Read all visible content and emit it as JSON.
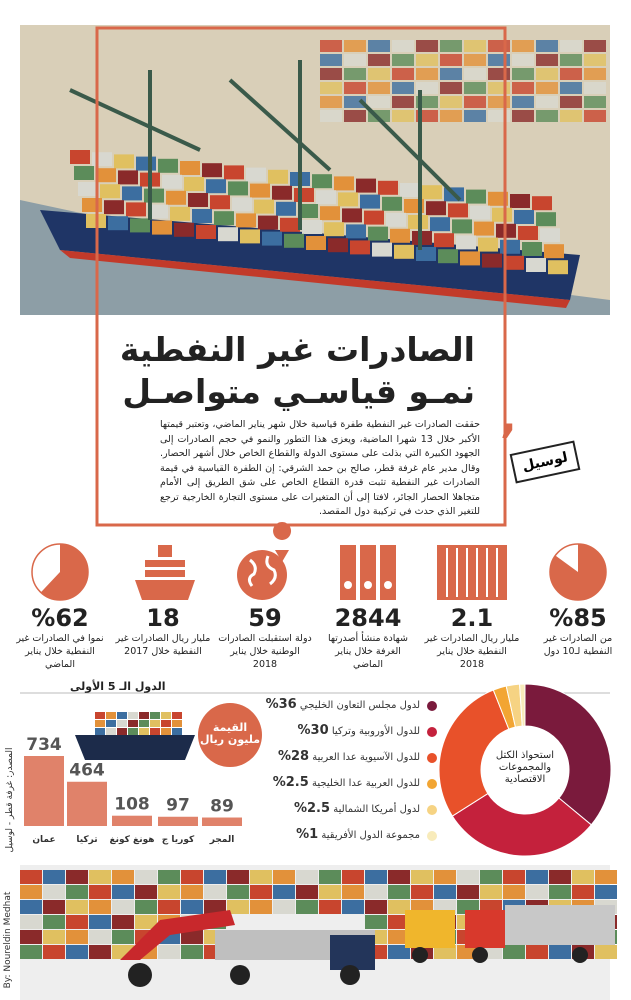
{
  "header": {
    "title_line1": "الصادرات غير النفطية",
    "title_line2": "نمـو قياسـي متواصـل"
  },
  "logo": "لوسيل",
  "intro": "حققت الصادرات غير النفطية طفرة قياسية خلال شهر يناير الماضي، وتعتبر قيمتها الأكبر خلال 13 شهرا الماضية، ويعزى هذا التطور والنمو في حجم الصادرات إلى الجهود الكبيرة التي بذلت على مستوى الدولة والقطاع الخاص خلال أشهر الحصار. وقال مدير عام غرفة قطر، صالح بن حمد الشرقي: إن الطفرة القياسية في قيمة الصادرات غير النفطية تثبت قدرة القطاع الخاص على شق الطريق إلى الأمام متجاهلا الحصار الجائر، لافتا إلى أن المتغيرات على مستوى التجارة الخارجية ترجع للتغير الذي حدث في تركيبة دول المقصد.",
  "stats": [
    {
      "value": 85,
      "value_label": "%85",
      "text": "من الصادرات غير النفطية لـ10 دول"
    },
    {
      "value": 2.1,
      "text": "مليار ريال الصادرات غير النفطية خلال يناير 2018"
    },
    {
      "value": 2844,
      "text": "شهادة منشأ أصدرتها الغرفة خلال يناير الماضي"
    },
    {
      "value": 59,
      "text": "دولة استقبلت الصادرات الوطنية خلال يناير 2018"
    },
    {
      "value": 18,
      "text": "مليار ريال الصادرات غير النفطية خلال 2017"
    },
    {
      "value": 62,
      "value_label": "%62",
      "text": "نموا في الصادرات غير النفطية خلال يناير الماضي"
    }
  ],
  "chart_data": [
    {
      "type": "donut",
      "title": "استحواذ الكتل والمجموعات الاقتصادية",
      "categories": [
        "لدول مجلس التعاون الخليجي",
        "للدول الأوروبية وتركيا",
        "للدول الآسيوية عدا العربية",
        "للدول العربية عدا الخليجية",
        "لدول أمريكا الشمالية",
        "مجموعة الدول الأفريقية"
      ],
      "values": [
        36,
        30,
        28,
        2.5,
        2.5,
        1
      ],
      "value_labels": [
        "%36",
        "%30",
        "%28",
        "%2.5",
        "%2.5",
        "%1"
      ],
      "colors": [
        "#7a1a3c",
        "#c4213c",
        "#e8512a",
        "#f2a533",
        "#f6d383",
        "#f8ebba"
      ]
    },
    {
      "type": "bar",
      "title": "الدول الـ 5 الأولى",
      "subtitle": "القيمة مليون ريال",
      "categories": [
        "عمان",
        "تركيا",
        "هونغ كونغ",
        "كوريا ج",
        "المجر"
      ],
      "values": [
        734,
        464,
        108,
        97,
        89
      ],
      "color": "#e0826a"
    }
  ],
  "source": "المصدر: غرفة قطر - لوسيل",
  "credit": "By: Noureldin Medhat"
}
